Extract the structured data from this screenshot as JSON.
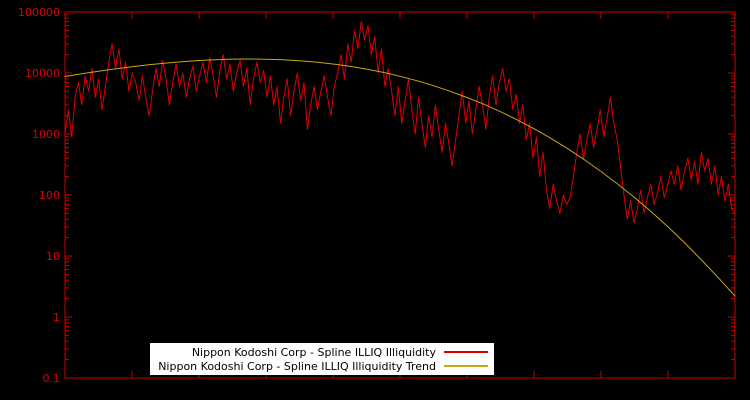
{
  "colors": {
    "background": "#000000",
    "frame": "#cc0000",
    "tick_label": "#dd0000",
    "series_red": "#dd0000",
    "series_trend": "#c8a812",
    "legend_bg": "#ffffff",
    "legend_text": "#000000"
  },
  "axes": {
    "y_min": 0.1,
    "y_max": 100000,
    "x_domain": [
      0,
      200
    ],
    "y_ticks": [
      {
        "label": "100000",
        "value": 100000
      },
      {
        "label": "10000",
        "value": 10000
      },
      {
        "label": "1000",
        "value": 1000
      },
      {
        "label": "100",
        "value": 100
      },
      {
        "label": "10",
        "value": 10
      },
      {
        "label": "1",
        "value": 1
      },
      {
        "label": "0.1",
        "value": 0.1
      }
    ]
  },
  "legend": {
    "entries": [
      {
        "label": "Nippon Kodoshi Corp - Spline ILLIQ Illiquidity"
      },
      {
        "label": "Nippon Kodoshi Corp - Spline ILLIQ Illiquidity Trend"
      }
    ]
  },
  "chart_data": {
    "type": "line",
    "title": "",
    "xlabel": "",
    "ylabel": "",
    "yscale": "log",
    "ylim": [
      0.1,
      100000
    ],
    "grid": false,
    "legend_position": "bottom-center",
    "series": [
      {
        "name": "Nippon Kodoshi Corp - Spline ILLIQ Illiquidity",
        "color": "#dd0000",
        "values": [
          1000,
          2500,
          900,
          4000,
          7000,
          3000,
          9000,
          5000,
          12000,
          4000,
          8000,
          2500,
          6000,
          15000,
          30000,
          12000,
          25000,
          8000,
          15000,
          5000,
          10000,
          7000,
          3500,
          9000,
          4000,
          2000,
          5000,
          12000,
          6000,
          16000,
          8000,
          3000,
          7000,
          14000,
          6000,
          10000,
          4000,
          8000,
          13000,
          5000,
          9000,
          15000,
          7000,
          18000,
          9000,
          4000,
          11000,
          20000,
          8000,
          14000,
          5000,
          10000,
          16000,
          6000,
          12000,
          3000,
          8000,
          15000,
          7000,
          11000,
          4000,
          9000,
          3000,
          6000,
          1500,
          4000,
          8000,
          2000,
          5000,
          10000,
          3500,
          7000,
          1200,
          3000,
          6000,
          2500,
          5000,
          9000,
          4000,
          2000,
          6000,
          10000,
          20000,
          8000,
          30000,
          15000,
          50000,
          25000,
          70000,
          35000,
          60000,
          20000,
          40000,
          10000,
          25000,
          6000,
          12000,
          5000,
          2000,
          6000,
          1500,
          3500,
          8000,
          2500,
          1000,
          4000,
          1500,
          600,
          2000,
          900,
          3000,
          1200,
          500,
          1500,
          700,
          300,
          800,
          2000,
          5000,
          1500,
          3500,
          1000,
          2500,
          6000,
          3000,
          1200,
          4000,
          9000,
          3000,
          7000,
          12000,
          5000,
          8000,
          2500,
          4500,
          1500,
          3000,
          800,
          1500,
          400,
          900,
          200,
          500,
          120,
          60,
          150,
          80,
          50,
          100,
          70,
          90,
          200,
          500,
          1000,
          400,
          800,
          1500,
          600,
          1200,
          2500,
          900,
          1800,
          4000,
          1500,
          800,
          300,
          100,
          40,
          80,
          35,
          60,
          120,
          50,
          90,
          150,
          70,
          110,
          200,
          90,
          150,
          250,
          150,
          300,
          120,
          250,
          400,
          180,
          350,
          150,
          500,
          250,
          400,
          150,
          300,
          100,
          200,
          80,
          150,
          60,
          50
        ]
      },
      {
        "name": "Nippon Kodoshi Corp - Spline ILLIQ Illiquidity Trend",
        "color": "#c8a812",
        "x": [
          0,
          5,
          10,
          15,
          20,
          25,
          30,
          35,
          40,
          45,
          50,
          55,
          60,
          65,
          70,
          75,
          80,
          85,
          90,
          95,
          100,
          105,
          110,
          115,
          120,
          125,
          130,
          135,
          140,
          145,
          150,
          155,
          160,
          165,
          170,
          175,
          180,
          185,
          190,
          195,
          200
        ],
        "values": [
          8750,
          9690,
          10670,
          11660,
          12660,
          13620,
          14520,
          15340,
          16020,
          16540,
          16870,
          16980,
          16860,
          16500,
          15910,
          15080,
          14060,
          12880,
          11580,
          10210,
          8830,
          7480,
          6190,
          5020,
          3970,
          3075,
          2320,
          1705,
          1221,
          851,
          577,
          380,
          243,
          151,
          91,
          53,
          30,
          16.4,
          8.6,
          4.4,
          2.2
        ]
      }
    ]
  }
}
